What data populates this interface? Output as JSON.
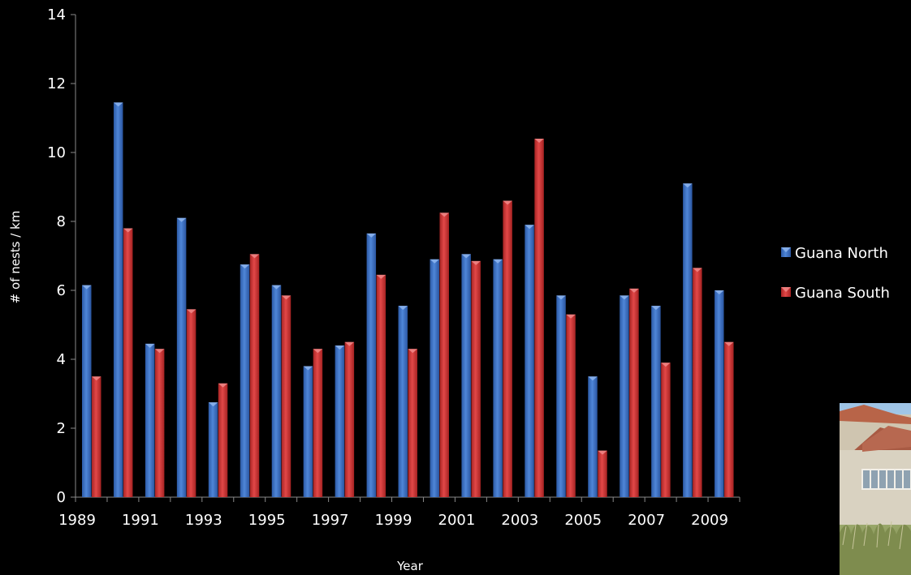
{
  "chart_data": {
    "type": "bar",
    "title": "",
    "xlabel": "Year",
    "ylabel": "# of nests / km",
    "ylim": [
      0,
      14
    ],
    "yticks": [
      "0",
      "2",
      "4",
      "6",
      "8",
      "10",
      "12",
      "14"
    ],
    "categories": [
      "1989",
      "1990",
      "1991",
      "1992",
      "1993",
      "1994",
      "1995",
      "1996",
      "1997",
      "1998",
      "1999",
      "2000",
      "2001",
      "2002",
      "2003",
      "2004",
      "2005",
      "2006",
      "2007",
      "2008",
      "2009"
    ],
    "xtick_labels": [
      "1989",
      "",
      "1991",
      "",
      "1993",
      "",
      "1995",
      "",
      "1997",
      "",
      "1999",
      "",
      "2001",
      "",
      "2003",
      "",
      "2005",
      "",
      "2007",
      "",
      "2009"
    ],
    "series": [
      {
        "name": "Guana North",
        "color": "#3f74c8",
        "values": [
          6.15,
          11.45,
          4.45,
          8.1,
          2.75,
          6.75,
          6.15,
          3.8,
          4.4,
          7.65,
          5.55,
          6.9,
          7.05,
          6.9,
          7.9,
          5.85,
          3.5,
          5.85,
          5.55,
          9.1,
          6.0
        ]
      },
      {
        "name": "Guana South",
        "color": "#d43a3a",
        "values": [
          3.5,
          7.8,
          4.3,
          5.45,
          3.3,
          7.05,
          5.85,
          4.3,
          4.5,
          6.45,
          4.3,
          8.25,
          6.85,
          8.6,
          10.4,
          5.3,
          1.35,
          6.05,
          3.9,
          6.65,
          4.5
        ]
      }
    ],
    "grid": false,
    "legend_position": "right"
  },
  "photo": {
    "icon": "beach-house-photo"
  }
}
